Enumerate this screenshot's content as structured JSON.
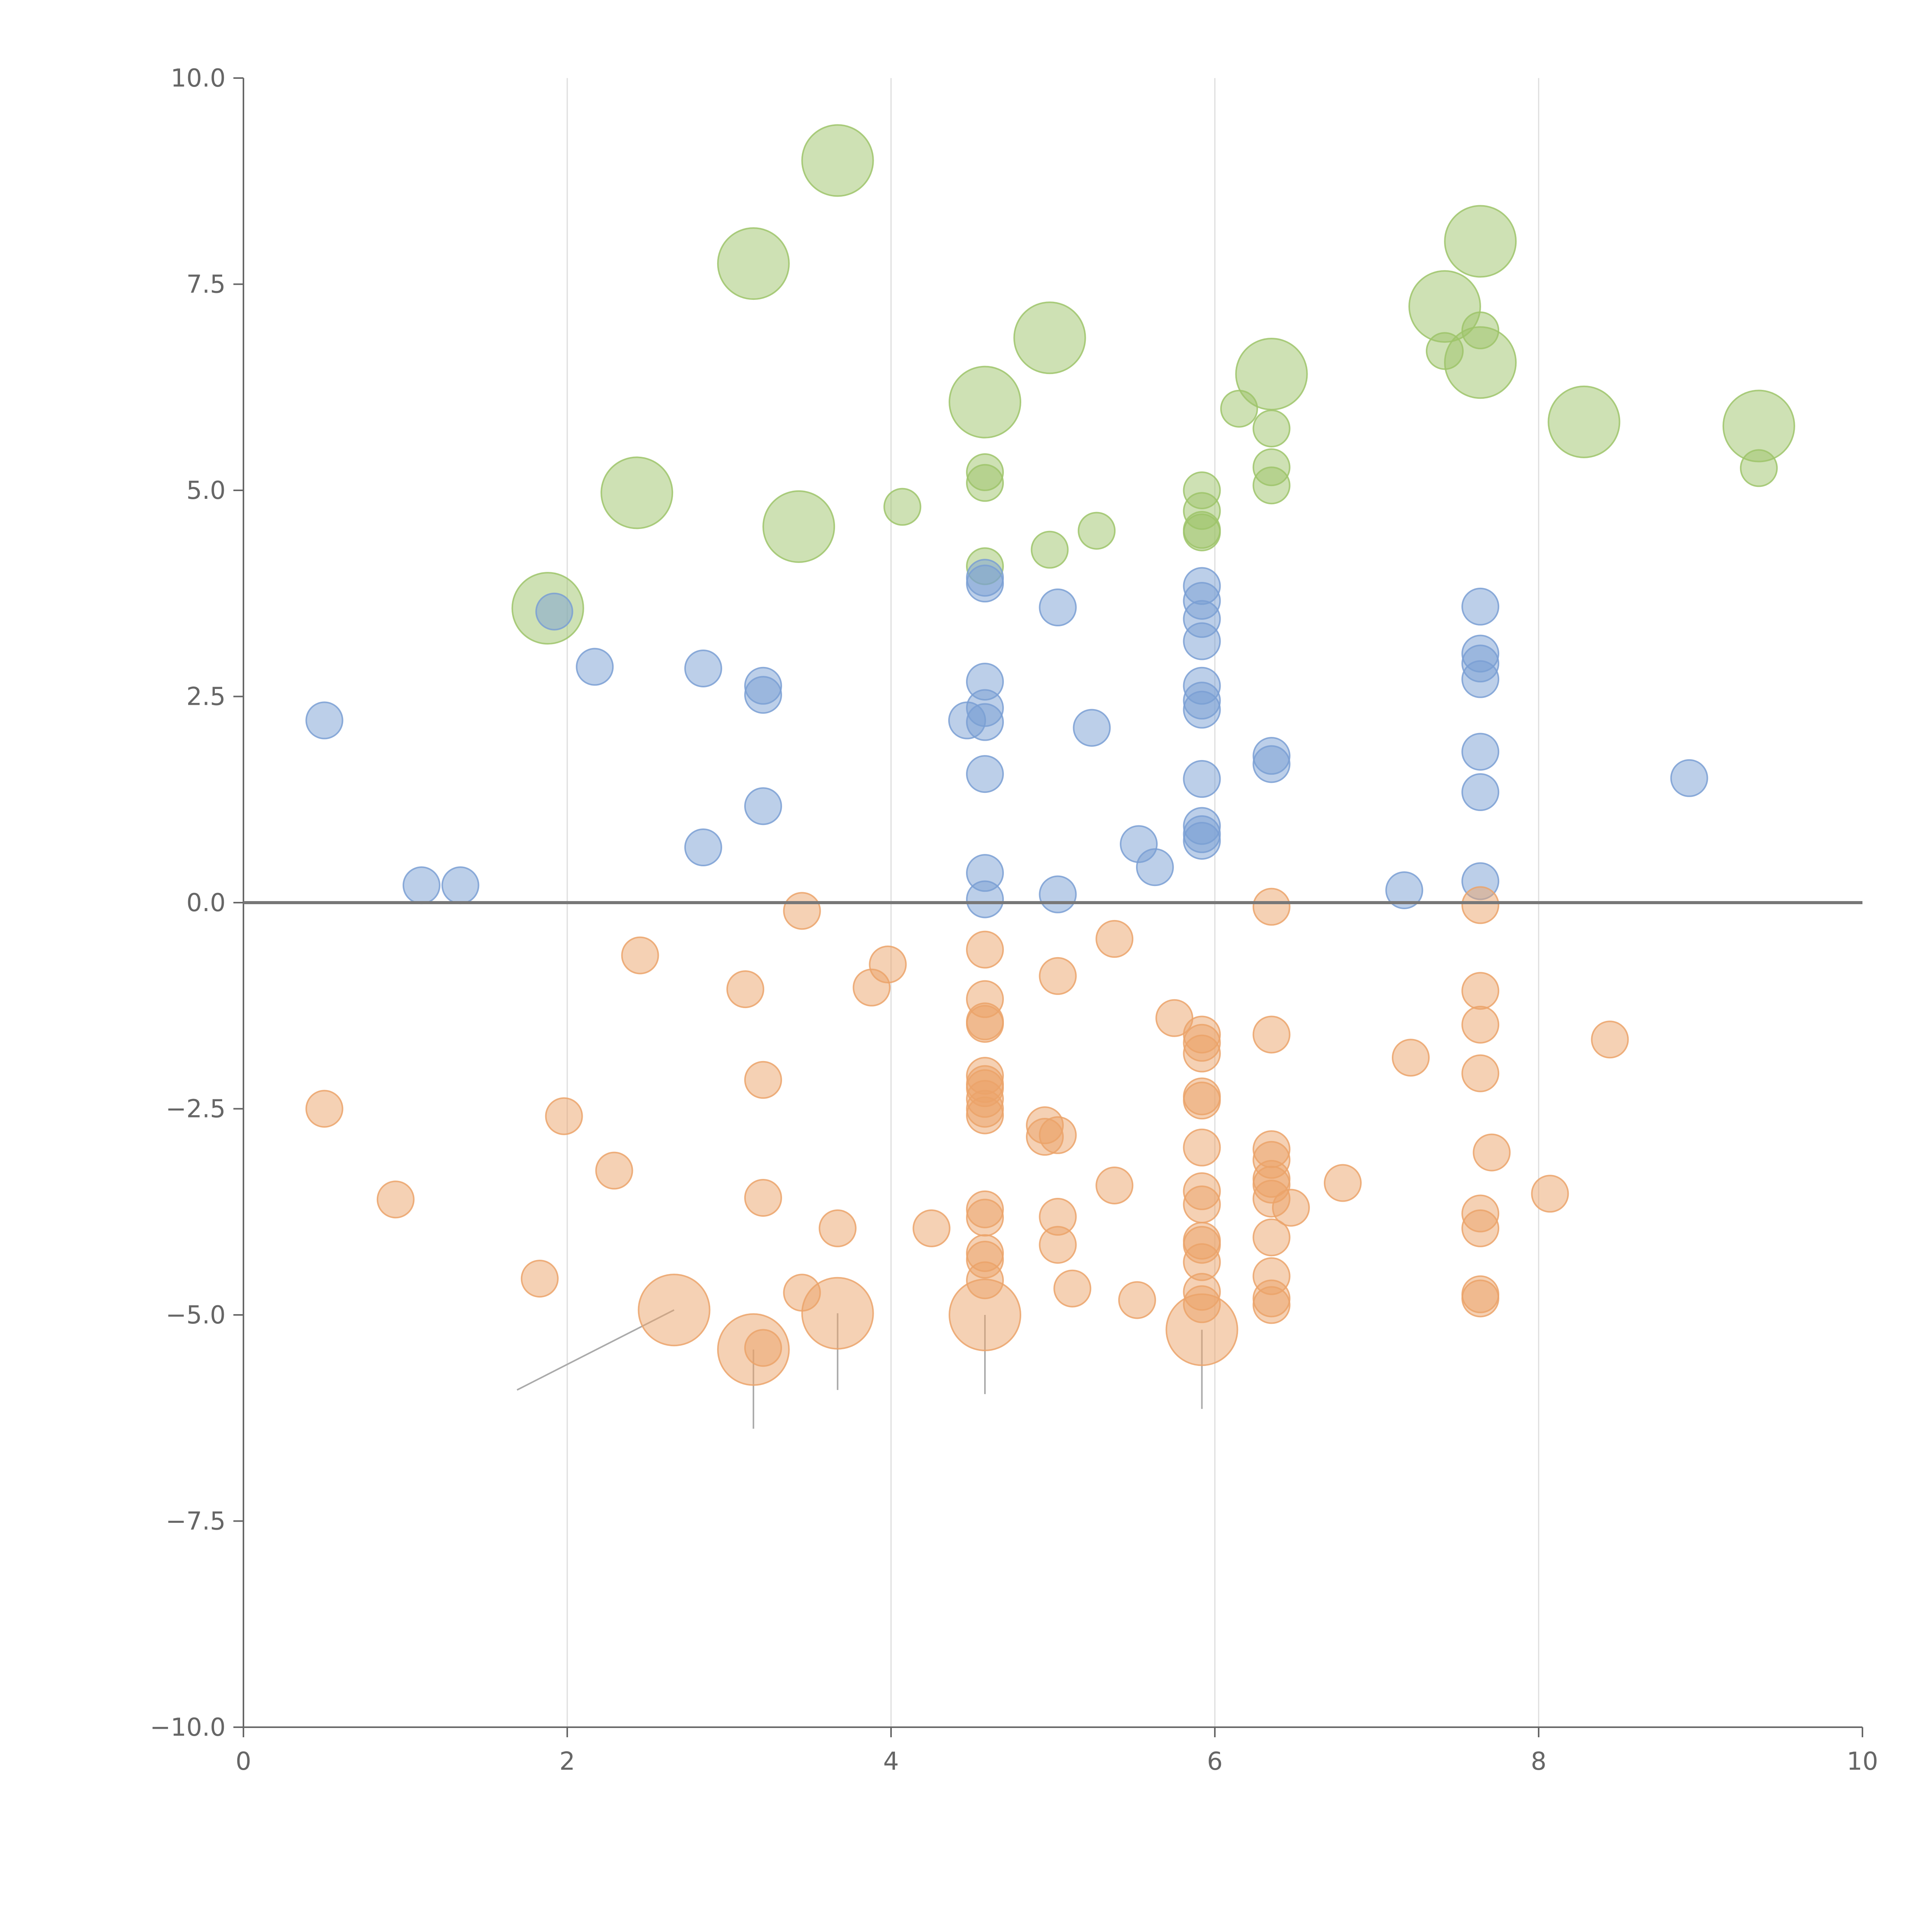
{
  "chart_data": {
    "type": "scatter",
    "title": "",
    "xlabel": "",
    "ylabel": "",
    "xlim": [
      0,
      10
    ],
    "ylim": [
      -10,
      10
    ],
    "x_ticks": [
      0,
      2,
      4,
      6,
      8,
      10
    ],
    "y_ticks": [
      -10,
      -7.5,
      -5,
      -2.5,
      0,
      2.5,
      5,
      7.5,
      10
    ],
    "x_tick_labels": [
      "0",
      "2",
      "4",
      "6",
      "8",
      "10"
    ],
    "y_tick_labels": [
      "−10.0",
      "−7.5",
      "−5.0",
      "−2.5",
      "0.0",
      "2.5",
      "5.0",
      "7.5",
      "10.0"
    ],
    "grid": "vertical lines at x ticks",
    "zero_line": 0,
    "series": [
      {
        "name": "green",
        "color": "#9dc46a",
        "points": [
          {
            "x": 3.67,
            "y": 9.0,
            "size": 3
          },
          {
            "x": 3.15,
            "y": 7.75,
            "size": 3
          },
          {
            "x": 7.64,
            "y": 8.02,
            "size": 3
          },
          {
            "x": 7.42,
            "y": 7.23,
            "size": 3
          },
          {
            "x": 4.98,
            "y": 6.85,
            "size": 3
          },
          {
            "x": 7.64,
            "y": 6.94,
            "size": 1
          },
          {
            "x": 7.42,
            "y": 6.69,
            "size": 1
          },
          {
            "x": 7.64,
            "y": 6.55,
            "size": 3
          },
          {
            "x": 6.35,
            "y": 6.41,
            "size": 3
          },
          {
            "x": 4.58,
            "y": 6.07,
            "size": 3
          },
          {
            "x": 6.15,
            "y": 5.99,
            "size": 1
          },
          {
            "x": 8.28,
            "y": 5.83,
            "size": 3
          },
          {
            "x": 9.36,
            "y": 5.78,
            "size": 3
          },
          {
            "x": 6.35,
            "y": 5.75,
            "size": 1
          },
          {
            "x": 6.35,
            "y": 5.28,
            "size": 1
          },
          {
            "x": 9.36,
            "y": 5.27,
            "size": 1
          },
          {
            "x": 4.58,
            "y": 5.22,
            "size": 1
          },
          {
            "x": 4.58,
            "y": 5.09,
            "size": 1
          },
          {
            "x": 6.35,
            "y": 5.06,
            "size": 1
          },
          {
            "x": 5.92,
            "y": 5.0,
            "size": 1
          },
          {
            "x": 2.43,
            "y": 4.97,
            "size": 3
          },
          {
            "x": 4.07,
            "y": 4.8,
            "size": 1
          },
          {
            "x": 5.92,
            "y": 4.75,
            "size": 1
          },
          {
            "x": 3.43,
            "y": 4.56,
            "size": 3
          },
          {
            "x": 5.27,
            "y": 4.51,
            "size": 1
          },
          {
            "x": 5.92,
            "y": 4.52,
            "size": 1
          },
          {
            "x": 5.92,
            "y": 4.49,
            "size": 1
          },
          {
            "x": 4.98,
            "y": 4.28,
            "size": 1
          },
          {
            "x": 4.58,
            "y": 4.08,
            "size": 1
          },
          {
            "x": 1.88,
            "y": 3.57,
            "size": 3
          }
        ]
      },
      {
        "name": "blue",
        "color": "#7a9fd4",
        "points": [
          {
            "x": 4.58,
            "y": 3.94,
            "size": 1
          },
          {
            "x": 4.58,
            "y": 3.87,
            "size": 1
          },
          {
            "x": 5.92,
            "y": 3.84,
            "size": 1
          },
          {
            "x": 5.92,
            "y": 3.66,
            "size": 1
          },
          {
            "x": 7.64,
            "y": 3.59,
            "size": 1
          },
          {
            "x": 5.03,
            "y": 3.58,
            "size": 1
          },
          {
            "x": 1.92,
            "y": 3.53,
            "size": 1
          },
          {
            "x": 5.92,
            "y": 3.44,
            "size": 1
          },
          {
            "x": 5.92,
            "y": 3.17,
            "size": 1
          },
          {
            "x": 7.64,
            "y": 3.02,
            "size": 1
          },
          {
            "x": 7.64,
            "y": 2.9,
            "size": 1
          },
          {
            "x": 2.17,
            "y": 2.86,
            "size": 1
          },
          {
            "x": 2.84,
            "y": 2.84,
            "size": 1
          },
          {
            "x": 7.64,
            "y": 2.71,
            "size": 1
          },
          {
            "x": 4.58,
            "y": 2.68,
            "size": 1
          },
          {
            "x": 3.21,
            "y": 2.63,
            "size": 1
          },
          {
            "x": 5.92,
            "y": 2.63,
            "size": 1
          },
          {
            "x": 3.21,
            "y": 2.52,
            "size": 1
          },
          {
            "x": 5.92,
            "y": 2.45,
            "size": 1
          },
          {
            "x": 4.58,
            "y": 2.36,
            "size": 1
          },
          {
            "x": 5.92,
            "y": 2.34,
            "size": 1
          },
          {
            "x": 0.5,
            "y": 2.21,
            "size": 1
          },
          {
            "x": 4.47,
            "y": 2.21,
            "size": 1
          },
          {
            "x": 4.58,
            "y": 2.19,
            "size": 1
          },
          {
            "x": 5.24,
            "y": 2.12,
            "size": 1
          },
          {
            "x": 7.64,
            "y": 1.83,
            "size": 1
          },
          {
            "x": 6.35,
            "y": 1.78,
            "size": 1
          },
          {
            "x": 6.35,
            "y": 1.68,
            "size": 1
          },
          {
            "x": 4.58,
            "y": 1.56,
            "size": 1
          },
          {
            "x": 8.93,
            "y": 1.51,
            "size": 1
          },
          {
            "x": 5.92,
            "y": 1.5,
            "size": 1
          },
          {
            "x": 7.64,
            "y": 1.34,
            "size": 1
          },
          {
            "x": 3.21,
            "y": 1.17,
            "size": 1
          },
          {
            "x": 5.92,
            "y": 0.93,
            "size": 1
          },
          {
            "x": 5.92,
            "y": 0.83,
            "size": 1
          },
          {
            "x": 5.92,
            "y": 0.75,
            "size": 1
          },
          {
            "x": 5.53,
            "y": 0.71,
            "size": 1
          },
          {
            "x": 2.84,
            "y": 0.67,
            "size": 1
          },
          {
            "x": 5.63,
            "y": 0.43,
            "size": 1
          },
          {
            "x": 4.58,
            "y": 0.36,
            "size": 1
          },
          {
            "x": 7.64,
            "y": 0.26,
            "size": 1
          },
          {
            "x": 1.1,
            "y": 0.21,
            "size": 1
          },
          {
            "x": 1.34,
            "y": 0.21,
            "size": 1
          },
          {
            "x": 7.17,
            "y": 0.15,
            "size": 1
          },
          {
            "x": 5.03,
            "y": 0.1,
            "size": 1
          },
          {
            "x": 4.58,
            "y": 0.04,
            "size": 1
          }
        ]
      },
      {
        "name": "orange",
        "color": "#eba36a",
        "points": [
          {
            "x": 6.35,
            "y": -0.05,
            "size": 1
          },
          {
            "x": 7.64,
            "y": -0.03,
            "size": 1
          },
          {
            "x": 3.45,
            "y": -0.1,
            "size": 1
          },
          {
            "x": 5.38,
            "y": -0.44,
            "size": 1
          },
          {
            "x": 4.58,
            "y": -0.57,
            "size": 1
          },
          {
            "x": 2.45,
            "y": -0.64,
            "size": 1
          },
          {
            "x": 3.98,
            "y": -0.75,
            "size": 1
          },
          {
            "x": 5.03,
            "y": -0.89,
            "size": 1
          },
          {
            "x": 3.88,
            "y": -1.03,
            "size": 1
          },
          {
            "x": 3.1,
            "y": -1.05,
            "size": 1
          },
          {
            "x": 7.64,
            "y": -1.07,
            "size": 1
          },
          {
            "x": 4.58,
            "y": -1.17,
            "size": 1
          },
          {
            "x": 5.75,
            "y": -1.4,
            "size": 1
          },
          {
            "x": 4.58,
            "y": -1.44,
            "size": 1
          },
          {
            "x": 4.58,
            "y": -1.47,
            "size": 1
          },
          {
            "x": 7.64,
            "y": -1.48,
            "size": 1
          },
          {
            "x": 5.92,
            "y": -1.6,
            "size": 1
          },
          {
            "x": 6.35,
            "y": -1.6,
            "size": 1
          },
          {
            "x": 8.44,
            "y": -1.66,
            "size": 1
          },
          {
            "x": 5.92,
            "y": -1.7,
            "size": 1
          },
          {
            "x": 5.92,
            "y": -1.83,
            "size": 1
          },
          {
            "x": 7.21,
            "y": -1.88,
            "size": 1
          },
          {
            "x": 4.58,
            "y": -2.1,
            "size": 1
          },
          {
            "x": 7.64,
            "y": -2.07,
            "size": 1
          },
          {
            "x": 3.21,
            "y": -2.15,
            "size": 1
          },
          {
            "x": 4.58,
            "y": -2.2,
            "size": 1
          },
          {
            "x": 4.58,
            "y": -2.25,
            "size": 1
          },
          {
            "x": 4.58,
            "y": -2.38,
            "size": 1
          },
          {
            "x": 5.92,
            "y": -2.35,
            "size": 1
          },
          {
            "x": 5.92,
            "y": -2.4,
            "size": 1
          },
          {
            "x": 4.58,
            "y": -2.5,
            "size": 1
          },
          {
            "x": 0.5,
            "y": -2.5,
            "size": 1
          },
          {
            "x": 4.58,
            "y": -2.58,
            "size": 1
          },
          {
            "x": 1.98,
            "y": -2.59,
            "size": 1
          },
          {
            "x": 4.95,
            "y": -2.7,
            "size": 1
          },
          {
            "x": 5.03,
            "y": -2.82,
            "size": 1
          },
          {
            "x": 4.95,
            "y": -2.84,
            "size": 1
          },
          {
            "x": 5.92,
            "y": -2.97,
            "size": 1
          },
          {
            "x": 6.35,
            "y": -2.99,
            "size": 1
          },
          {
            "x": 7.71,
            "y": -3.03,
            "size": 1
          },
          {
            "x": 6.35,
            "y": -3.12,
            "size": 1
          },
          {
            "x": 2.29,
            "y": -3.25,
            "size": 1
          },
          {
            "x": 6.35,
            "y": -3.35,
            "size": 1
          },
          {
            "x": 6.35,
            "y": -3.42,
            "size": 1
          },
          {
            "x": 6.79,
            "y": -3.4,
            "size": 1
          },
          {
            "x": 5.38,
            "y": -3.43,
            "size": 1
          },
          {
            "x": 5.92,
            "y": -3.5,
            "size": 1
          },
          {
            "x": 8.07,
            "y": -3.53,
            "size": 1
          },
          {
            "x": 3.21,
            "y": -3.58,
            "size": 1
          },
          {
            "x": 0.94,
            "y": -3.6,
            "size": 1
          },
          {
            "x": 6.35,
            "y": -3.59,
            "size": 1
          },
          {
            "x": 5.92,
            "y": -3.66,
            "size": 1
          },
          {
            "x": 6.47,
            "y": -3.7,
            "size": 1
          },
          {
            "x": 4.58,
            "y": -3.72,
            "size": 1
          },
          {
            "x": 7.64,
            "y": -3.77,
            "size": 1
          },
          {
            "x": 4.58,
            "y": -3.82,
            "size": 1
          },
          {
            "x": 5.03,
            "y": -3.81,
            "size": 1
          },
          {
            "x": 3.67,
            "y": -3.95,
            "size": 1
          },
          {
            "x": 4.25,
            "y": -3.95,
            "size": 1
          },
          {
            "x": 7.64,
            "y": -3.95,
            "size": 1
          },
          {
            "x": 6.35,
            "y": -4.06,
            "size": 1
          },
          {
            "x": 5.92,
            "y": -4.1,
            "size": 1
          },
          {
            "x": 5.92,
            "y": -4.15,
            "size": 1
          },
          {
            "x": 5.03,
            "y": -4.15,
            "size": 1
          },
          {
            "x": 4.58,
            "y": -4.25,
            "size": 1
          },
          {
            "x": 4.58,
            "y": -4.33,
            "size": 1
          },
          {
            "x": 5.92,
            "y": -4.36,
            "size": 1
          },
          {
            "x": 6.35,
            "y": -4.53,
            "size": 1
          },
          {
            "x": 1.83,
            "y": -4.56,
            "size": 1
          },
          {
            "x": 4.58,
            "y": -4.58,
            "size": 1
          },
          {
            "x": 5.12,
            "y": -4.68,
            "size": 1
          },
          {
            "x": 5.92,
            "y": -4.72,
            "size": 1
          },
          {
            "x": 3.45,
            "y": -4.73,
            "size": 1
          },
          {
            "x": 7.64,
            "y": -4.75,
            "size": 1
          },
          {
            "x": 7.64,
            "y": -4.8,
            "size": 1
          },
          {
            "x": 6.35,
            "y": -4.8,
            "size": 1
          },
          {
            "x": 5.52,
            "y": -4.82,
            "size": 1
          },
          {
            "x": 6.35,
            "y": -4.88,
            "size": 1
          },
          {
            "x": 5.92,
            "y": -4.87,
            "size": 1
          },
          {
            "x": 2.66,
            "y": -4.94,
            "size": 3
          },
          {
            "x": 3.67,
            "y": -4.98,
            "size": 3
          },
          {
            "x": 4.58,
            "y": -5.0,
            "size": 3
          },
          {
            "x": 5.92,
            "y": -5.18,
            "size": 3
          },
          {
            "x": 3.15,
            "y": -5.42,
            "size": 3
          },
          {
            "x": 3.21,
            "y": -5.4,
            "size": 1
          }
        ]
      }
    ],
    "leader_lines": [
      {
        "from": [
          2.66,
          -4.94
        ],
        "to": [
          1.69,
          -5.91
        ]
      },
      {
        "from": [
          3.15,
          -5.42
        ],
        "to": [
          3.15,
          -6.38
        ]
      },
      {
        "from": [
          3.67,
          -4.98
        ],
        "to": [
          3.67,
          -5.91
        ]
      },
      {
        "from": [
          4.58,
          -5.0
        ],
        "to": [
          4.58,
          -5.96
        ]
      },
      {
        "from": [
          5.92,
          -5.18
        ],
        "to": [
          5.92,
          -6.14
        ]
      }
    ]
  }
}
